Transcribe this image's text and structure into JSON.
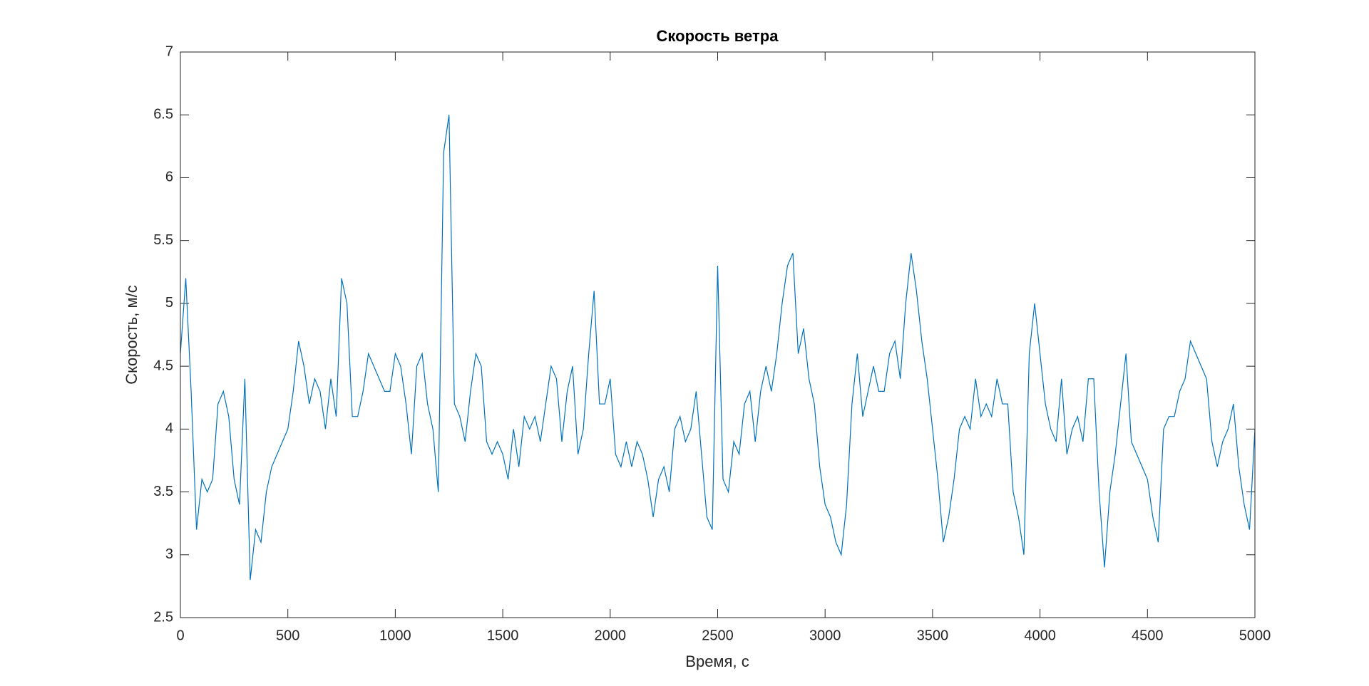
{
  "chart_data": {
    "type": "line",
    "title": "Скорость ветра",
    "x_label": "Время, с",
    "y_label": "Скорость, м/с",
    "x": [
      0,
      25,
      50,
      75,
      100,
      125,
      150,
      175,
      200,
      225,
      250,
      275,
      300,
      325,
      350,
      375,
      400,
      425,
      450,
      475,
      500,
      525,
      550,
      575,
      600,
      625,
      650,
      675,
      700,
      725,
      750,
      775,
      800,
      825,
      850,
      875,
      900,
      925,
      950,
      975,
      1000,
      1025,
      1050,
      1075,
      1100,
      1125,
      1150,
      1175,
      1200,
      1225,
      1250,
      1275,
      1300,
      1325,
      1350,
      1375,
      1400,
      1425,
      1450,
      1475,
      1500,
      1525,
      1550,
      1575,
      1600,
      1625,
      1650,
      1675,
      1700,
      1725,
      1750,
      1775,
      1800,
      1825,
      1850,
      1875,
      1900,
      1925,
      1950,
      1975,
      2000,
      2025,
      2050,
      2075,
      2100,
      2125,
      2150,
      2175,
      2200,
      2225,
      2250,
      2275,
      2300,
      2325,
      2350,
      2375,
      2400,
      2425,
      2450,
      2475,
      2500,
      2525,
      2550,
      2575,
      2600,
      2625,
      2650,
      2675,
      2700,
      2725,
      2750,
      2775,
      2800,
      2825,
      2850,
      2875,
      2900,
      2925,
      2950,
      2975,
      3000,
      3025,
      3050,
      3075,
      3100,
      3125,
      3150,
      3175,
      3200,
      3225,
      3250,
      3275,
      3300,
      3325,
      3350,
      3375,
      3400,
      3425,
      3450,
      3475,
      3500,
      3525,
      3550,
      3575,
      3600,
      3625,
      3650,
      3675,
      3700,
      3725,
      3750,
      3775,
      3800,
      3825,
      3850,
      3875,
      3900,
      3925,
      3950,
      3975,
      4000,
      4025,
      4050,
      4075,
      4100,
      4125,
      4150,
      4175,
      4200,
      4225,
      4250,
      4275,
      4300,
      4325,
      4350,
      4375,
      4400,
      4425,
      4450,
      4475,
      4500,
      4525,
      4550,
      4575,
      4600,
      4625,
      4650,
      4675,
      4700,
      4725,
      4750,
      4775,
      4800,
      4825,
      4850,
      4875,
      4900,
      4925,
      4950,
      4975,
      5000
    ],
    "series": [
      {
        "color": "#0072bd",
        "values": [
          4.6,
          5.2,
          4.3,
          3.2,
          3.6,
          3.5,
          3.6,
          4.2,
          4.3,
          4.1,
          3.6,
          3.4,
          4.4,
          2.8,
          3.2,
          3.1,
          3.5,
          3.7,
          3.8,
          3.9,
          4.0,
          4.3,
          4.7,
          4.5,
          4.2,
          4.4,
          4.3,
          4.0,
          4.4,
          4.1,
          5.2,
          5.0,
          4.1,
          4.1,
          4.3,
          4.6,
          4.5,
          4.4,
          4.3,
          4.3,
          4.6,
          4.5,
          4.2,
          3.8,
          4.5,
          4.6,
          4.2,
          4.0,
          3.5,
          6.2,
          6.5,
          4.2,
          4.1,
          3.9,
          4.3,
          4.6,
          4.5,
          3.9,
          3.8,
          3.9,
          3.8,
          3.6,
          4.0,
          3.7,
          4.1,
          4.0,
          4.1,
          3.9,
          4.2,
          4.5,
          4.4,
          3.9,
          4.3,
          4.5,
          3.8,
          4.0,
          4.6,
          5.1,
          4.2,
          4.2,
          4.4,
          3.8,
          3.7,
          3.9,
          3.7,
          3.9,
          3.8,
          3.6,
          3.3,
          3.6,
          3.7,
          3.5,
          4.0,
          4.1,
          3.9,
          4.0,
          4.3,
          3.8,
          3.3,
          3.2,
          5.3,
          3.6,
          3.5,
          3.9,
          3.8,
          4.2,
          4.3,
          3.9,
          4.3,
          4.5,
          4.3,
          4.6,
          5.0,
          5.3,
          5.4,
          4.6,
          4.8,
          4.4,
          4.2,
          3.7,
          3.4,
          3.3,
          3.1,
          3.0,
          3.4,
          4.2,
          4.6,
          4.1,
          4.3,
          4.5,
          4.3,
          4.3,
          4.6,
          4.7,
          4.4,
          5.0,
          5.4,
          5.1,
          4.7,
          4.4,
          4.0,
          3.6,
          3.1,
          3.3,
          3.6,
          4.0,
          4.1,
          4.0,
          4.4,
          4.1,
          4.2,
          4.1,
          4.4,
          4.2,
          4.2,
          3.5,
          3.3,
          3.0,
          4.6,
          5.0,
          4.6,
          4.2,
          4.0,
          3.9,
          4.4,
          3.8,
          4.0,
          4.1,
          3.9,
          4.4,
          4.4,
          3.5,
          2.9,
          3.5,
          3.8,
          4.2,
          4.6,
          3.9,
          3.8,
          3.7,
          3.6,
          3.3,
          3.1,
          4.0,
          4.1,
          4.1,
          4.3,
          4.4,
          4.7,
          4.6,
          4.5,
          4.4,
          3.9,
          3.7,
          3.9,
          4.0,
          4.2,
          3.7,
          3.4,
          3.2,
          4.0
        ]
      }
    ],
    "xlim": [
      0,
      5000
    ],
    "xticks": [
      0,
      500,
      1000,
      1500,
      2000,
      2500,
      3000,
      3500,
      4000,
      4500,
      5000
    ],
    "ylim": [
      2.5,
      7
    ],
    "yticks": [
      2.5,
      3,
      3.5,
      4,
      4.5,
      5,
      5.5,
      6,
      6.5,
      7
    ]
  }
}
